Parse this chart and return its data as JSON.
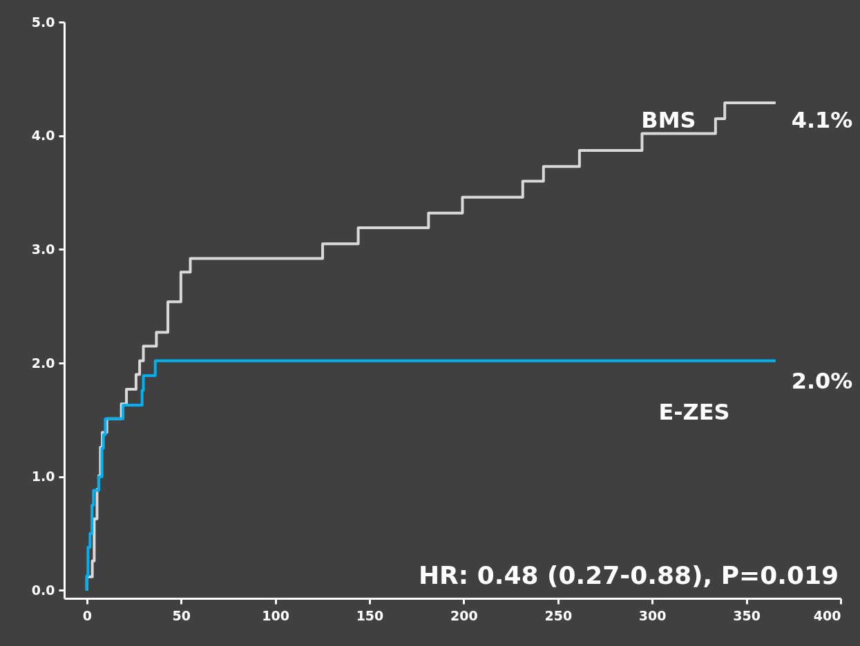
{
  "chart_data": {
    "type": "step",
    "xlim": [
      -12,
      400
    ],
    "ylim": [
      -0.07,
      5
    ],
    "xticks": [
      0,
      50,
      100,
      150,
      200,
      250,
      300,
      350,
      400
    ],
    "yticks": [
      {
        "value": 0,
        "label": "0.0"
      },
      {
        "value": 1,
        "label": "1.0"
      },
      {
        "value": 2,
        "label": "2.0"
      },
      {
        "value": 3,
        "label": "3.0"
      },
      {
        "value": 4,
        "label": "4.0"
      },
      {
        "value": 5,
        "label": "5.0"
      }
    ],
    "grid": false,
    "legend": false,
    "marker": "none",
    "line_style": "solid",
    "series": [
      {
        "name": "BMS",
        "color": "#d9d9d9",
        "x": [
          0,
          0,
          2.9,
          3.9,
          5.4,
          6.3,
          7.2,
          8.2,
          10.6,
          18.3,
          21,
          26.1,
          28,
          30,
          36.9,
          43,
          49.9,
          54.9,
          125.1,
          144,
          181.3,
          199.3,
          231.3,
          242.3,
          261.4,
          294.6,
          333.6,
          338.5,
          365.5
        ],
        "values": [
          0,
          0.12,
          0.26,
          0.63,
          0.89,
          1.01,
          1.26,
          1.39,
          1.51,
          1.64,
          1.77,
          1.9,
          2.02,
          2.15,
          2.27,
          2.54,
          2.8,
          2.92,
          3.05,
          3.19,
          3.32,
          3.46,
          3.6,
          3.73,
          3.87,
          4.02,
          4.15,
          4.29,
          4.29
        ]
      },
      {
        "name": "E-ZES",
        "color": "#00b0f0",
        "x": [
          0,
          0,
          0.6,
          1.7,
          2.7,
          3.5,
          6.3,
          8,
          8.8,
          9.8,
          19.2,
          29.3,
          30,
          36.3,
          365.5
        ],
        "values": [
          0,
          0.13,
          0.38,
          0.5,
          0.75,
          0.88,
          1.0,
          1.25,
          1.37,
          1.51,
          1.63,
          1.76,
          1.89,
          2.02,
          2.02
        ]
      }
    ],
    "annotations": [
      "4.1%",
      "2.0%",
      "HR: 0.48 (0.27-0.88), P=0.019"
    ]
  }
}
